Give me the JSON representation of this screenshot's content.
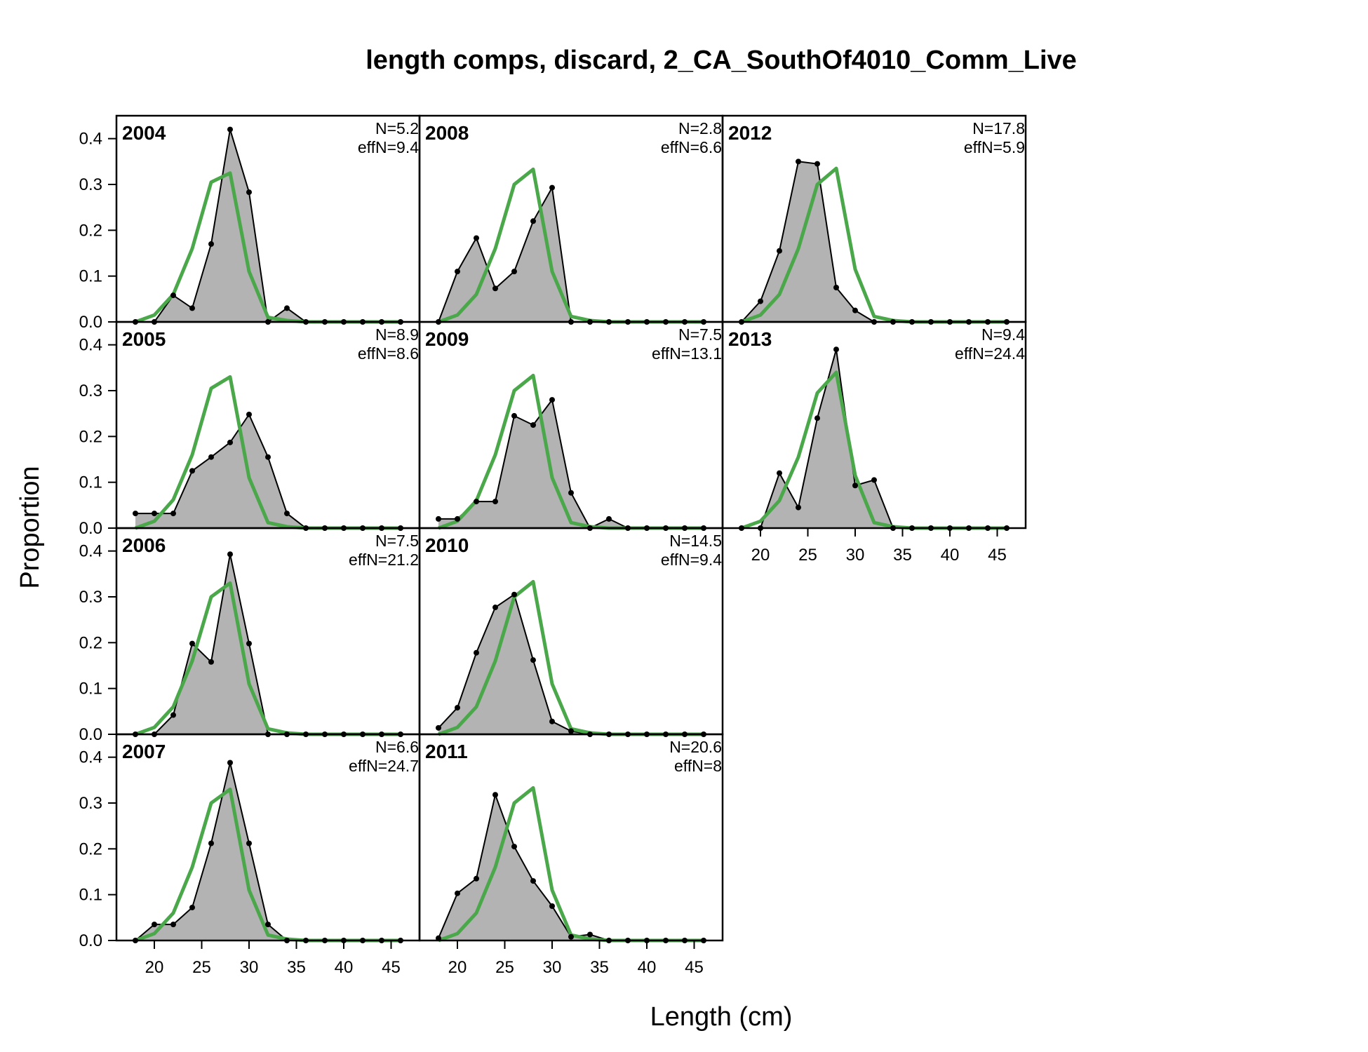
{
  "chart_data": {
    "type": "area",
    "title": "length comps, discard, 2_CA_SouthOf4010_Comm_Live",
    "xlabel": "Length (cm)",
    "ylabel": "Proportion",
    "xlim": [
      16,
      48
    ],
    "ylim": [
      0,
      0.45
    ],
    "x_ticks": [
      "20",
      "25",
      "30",
      "35",
      "40",
      "45"
    ],
    "y_ticks": [
      "0.0",
      "0.1",
      "0.2",
      "0.3",
      "0.4"
    ],
    "x": [
      18,
      20,
      22,
      24,
      26,
      28,
      30,
      32,
      34,
      36,
      38,
      40,
      42,
      44,
      46
    ],
    "colors": {
      "observed_fill": "#b3b3b3",
      "observed_line": "#000000",
      "expected_line": "#4aa84a",
      "zero_line": "#bebebe"
    },
    "panels": [
      {
        "year": "2004",
        "n_text": "N=5.2",
        "effn_text": "effN=9.4",
        "observed": [
          0,
          0,
          0.058,
          0.03,
          0.17,
          0.42,
          0.283,
          0,
          0.03,
          0,
          0,
          0,
          0,
          0,
          0
        ],
        "expected": [
          0,
          0.015,
          0.06,
          0.16,
          0.305,
          0.325,
          0.11,
          0.01,
          0.003,
          0,
          0,
          0,
          0,
          0,
          0
        ]
      },
      {
        "year": "2005",
        "n_text": "N=8.9",
        "effn_text": "effN=8.6",
        "observed": [
          0.032,
          0.032,
          0.032,
          0.125,
          0.155,
          0.187,
          0.248,
          0.155,
          0.032,
          0,
          0,
          0,
          0,
          0,
          0
        ],
        "expected": [
          0,
          0.015,
          0.062,
          0.16,
          0.305,
          0.33,
          0.11,
          0.012,
          0.003,
          0,
          0,
          0,
          0,
          0,
          0
        ]
      },
      {
        "year": "2006",
        "n_text": "N=7.5",
        "effn_text": "effN=21.2",
        "observed": [
          0,
          0,
          0.042,
          0.198,
          0.158,
          0.393,
          0.198,
          0,
          0,
          0,
          0,
          0,
          0,
          0,
          0
        ],
        "expected": [
          0,
          0.015,
          0.06,
          0.16,
          0.3,
          0.33,
          0.11,
          0.012,
          0.003,
          0,
          0,
          0,
          0,
          0,
          0
        ]
      },
      {
        "year": "2007",
        "n_text": "N=6.6",
        "effn_text": "effN=24.7",
        "observed": [
          0,
          0.035,
          0.035,
          0.072,
          0.212,
          0.388,
          0.212,
          0.035,
          0,
          0,
          0,
          0,
          0,
          0,
          0
        ],
        "expected": [
          0,
          0.015,
          0.06,
          0.16,
          0.3,
          0.33,
          0.11,
          0.012,
          0.003,
          0,
          0,
          0,
          0,
          0,
          0
        ]
      },
      {
        "year": "2008",
        "n_text": "N=2.8",
        "effn_text": "effN=6.6",
        "observed": [
          0,
          0.11,
          0.183,
          0.073,
          0.11,
          0.22,
          0.293,
          0,
          0,
          0,
          0,
          0,
          0,
          0,
          0
        ],
        "expected": [
          0,
          0.015,
          0.06,
          0.16,
          0.3,
          0.333,
          0.11,
          0.012,
          0.003,
          0,
          0,
          0,
          0,
          0,
          0
        ]
      },
      {
        "year": "2009",
        "n_text": "N=7.5",
        "effn_text": "effN=13.1",
        "observed": [
          0.02,
          0.02,
          0.058,
          0.058,
          0.245,
          0.225,
          0.28,
          0.077,
          0,
          0.02,
          0,
          0,
          0,
          0,
          0
        ],
        "expected": [
          0,
          0.015,
          0.06,
          0.16,
          0.3,
          0.333,
          0.11,
          0.012,
          0.003,
          0,
          0,
          0,
          0,
          0,
          0
        ]
      },
      {
        "year": "2010",
        "n_text": "N=14.5",
        "effn_text": "effN=9.4",
        "observed": [
          0.014,
          0.058,
          0.178,
          0.277,
          0.305,
          0.162,
          0.028,
          0.007,
          0,
          0,
          0,
          0,
          0,
          0,
          0
        ],
        "expected": [
          0,
          0.015,
          0.06,
          0.16,
          0.3,
          0.333,
          0.11,
          0.012,
          0.003,
          0,
          0,
          0,
          0,
          0,
          0
        ]
      },
      {
        "year": "2011",
        "n_text": "N=20.6",
        "effn_text": "effN=8",
        "observed": [
          0.005,
          0.103,
          0.135,
          0.318,
          0.205,
          0.13,
          0.075,
          0.008,
          0.013,
          0,
          0,
          0,
          0,
          0,
          0
        ],
        "expected": [
          0,
          0.015,
          0.06,
          0.16,
          0.3,
          0.333,
          0.11,
          0.012,
          0.003,
          0,
          0,
          0,
          0,
          0,
          0
        ]
      },
      {
        "year": "2012",
        "n_text": "N=17.8",
        "effn_text": "effN=5.9",
        "observed": [
          0,
          0.045,
          0.155,
          0.35,
          0.345,
          0.075,
          0.025,
          0,
          0,
          0,
          0,
          0,
          0,
          0,
          0
        ],
        "expected": [
          0,
          0.015,
          0.06,
          0.16,
          0.3,
          0.335,
          0.115,
          0.012,
          0.003,
          0,
          0,
          0,
          0,
          0,
          0
        ]
      },
      {
        "year": "2013",
        "n_text": "N=9.4",
        "effn_text": "effN=24.4",
        "observed": [
          0,
          0,
          0.12,
          0.045,
          0.24,
          0.39,
          0.093,
          0.105,
          0,
          0,
          0,
          0,
          0,
          0,
          0
        ],
        "expected": [
          0,
          0.015,
          0.06,
          0.155,
          0.295,
          0.34,
          0.115,
          0.012,
          0.003,
          0,
          0,
          0,
          0,
          0,
          0
        ]
      }
    ]
  }
}
